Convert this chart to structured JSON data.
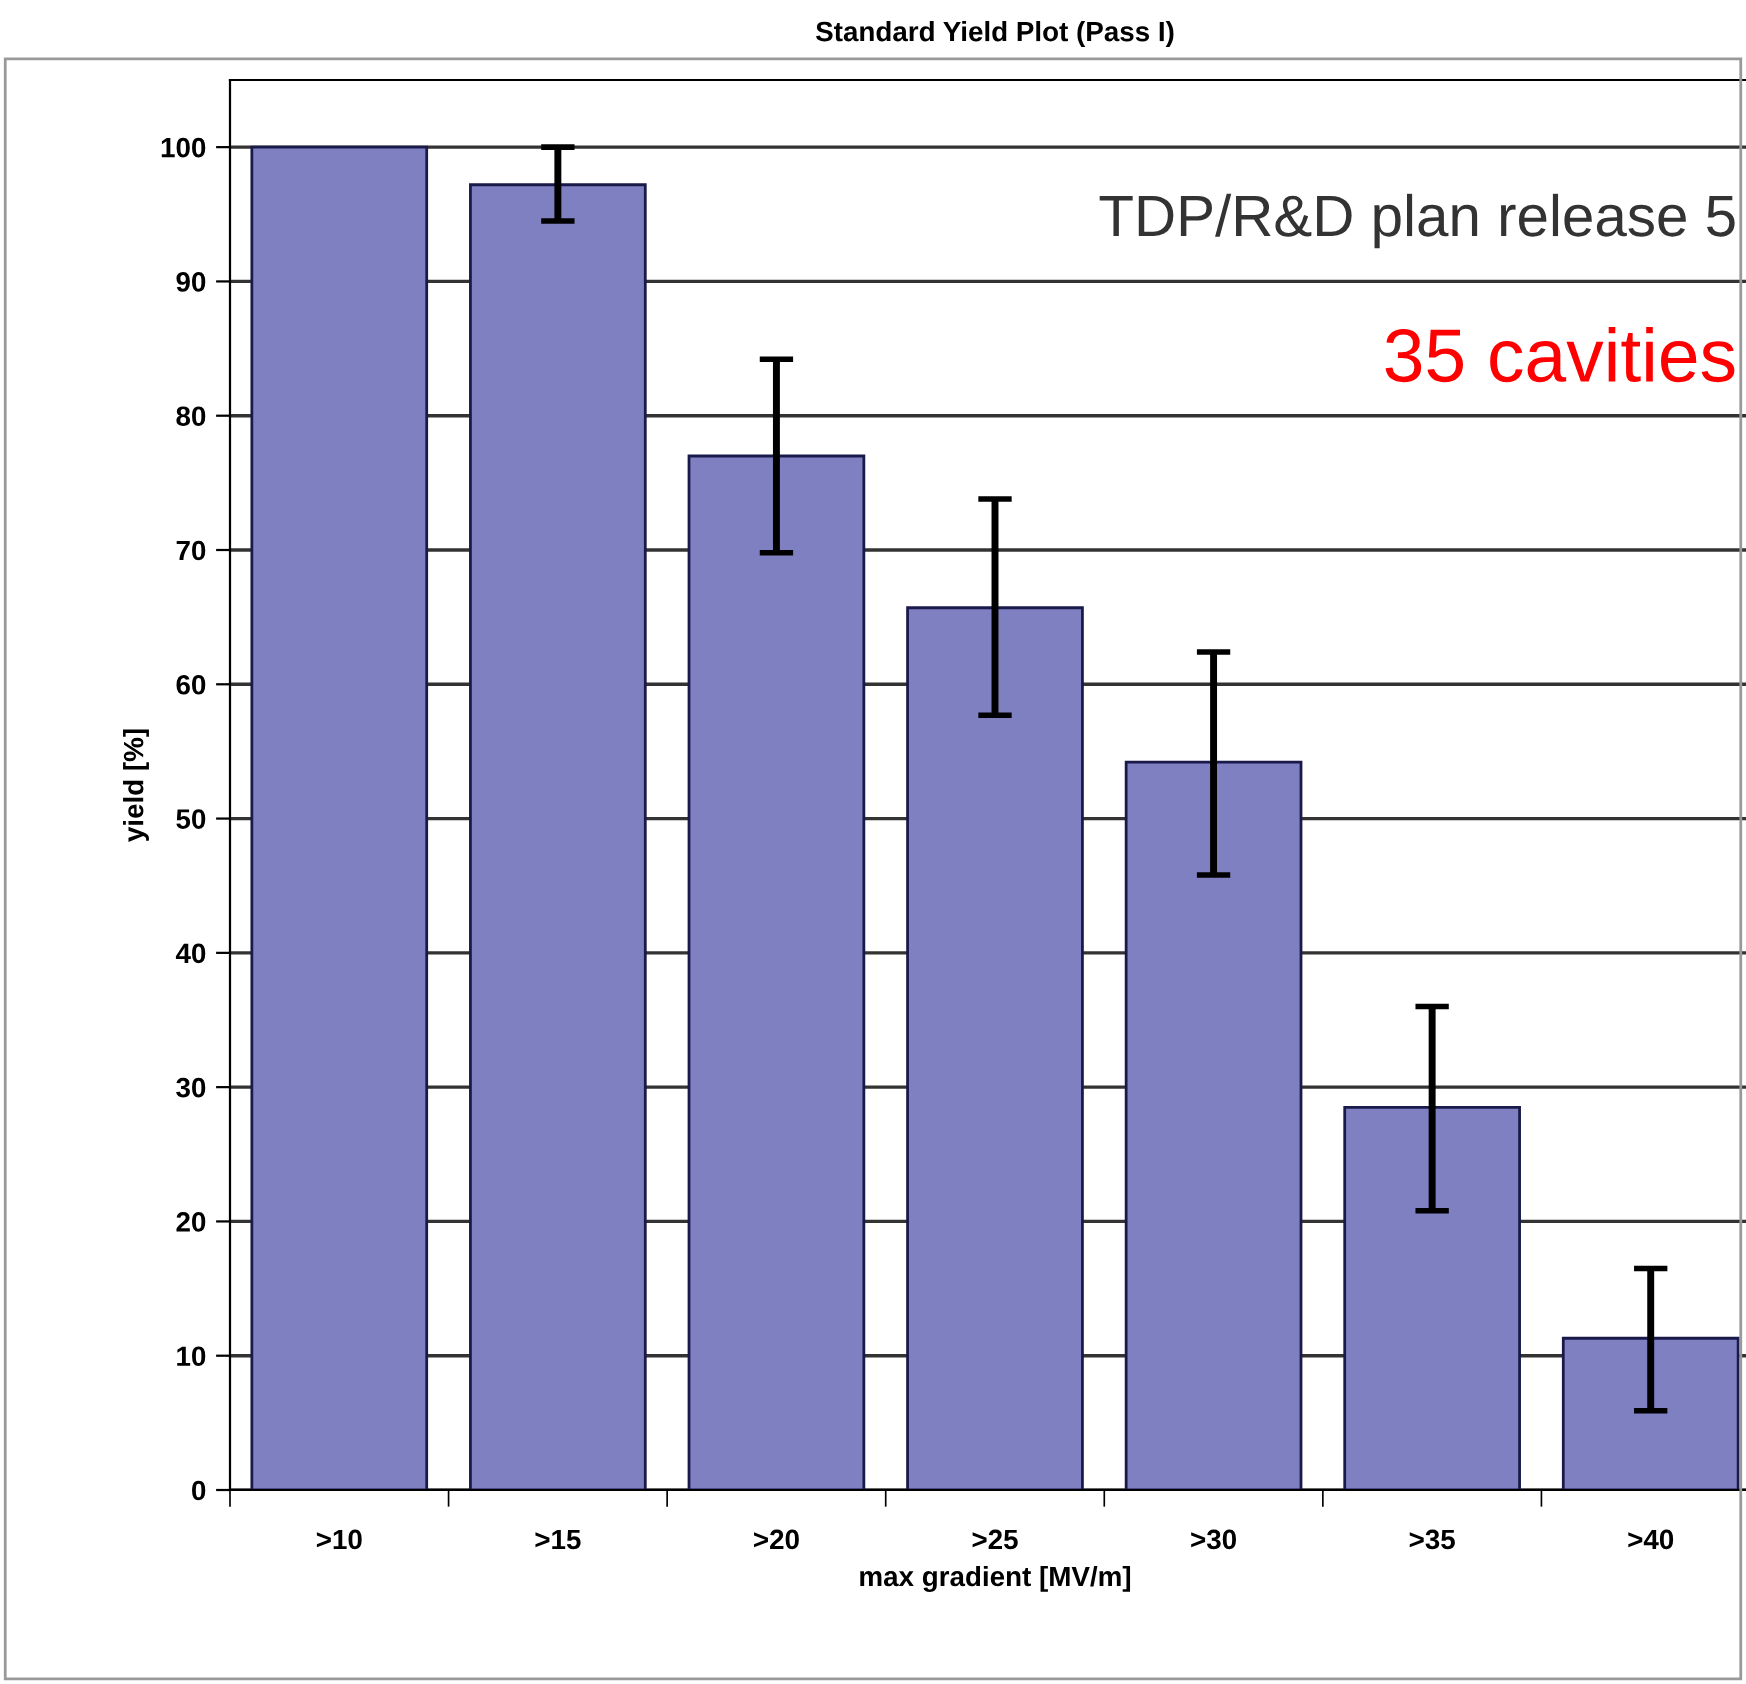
{
  "chart_data": {
    "type": "bar",
    "title": "Standard Yield Plot (Pass I)",
    "xlabel": "max gradient [MV/m]",
    "ylabel": "yield [%]",
    "categories": [
      ">10",
      ">15",
      ">20",
      ">25",
      ">30",
      ">35",
      ">40"
    ],
    "values": [
      100,
      97.2,
      77.0,
      65.7,
      54.2,
      28.5,
      11.3
    ],
    "errors": [
      null,
      [
        94.5,
        100
      ],
      [
        69.8,
        84.2
      ],
      [
        57.7,
        73.8
      ],
      [
        45.8,
        62.4
      ],
      [
        20.8,
        36.0
      ],
      [
        5.9,
        16.5
      ]
    ],
    "color": "#7f80c2",
    "ylim": [
      0,
      105
    ],
    "yticks": [
      0,
      10,
      20,
      30,
      40,
      50,
      60,
      70,
      80,
      90,
      100
    ],
    "grid": "y",
    "annotations": [
      "TDP/R&D plan release 5",
      "35 cavities"
    ]
  }
}
